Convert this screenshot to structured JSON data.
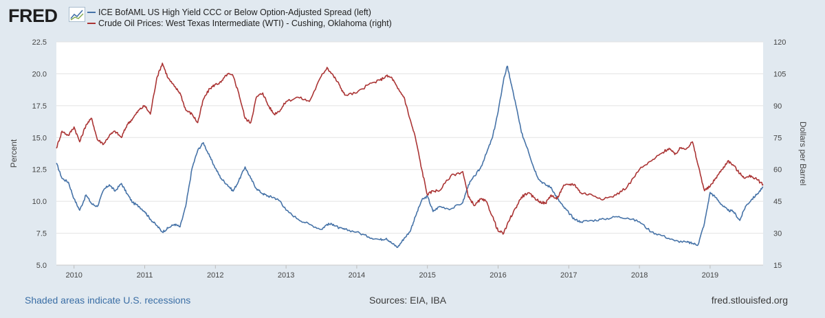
{
  "header": {
    "logo_text": "FRED",
    "logo_icon": "line-chart-icon"
  },
  "footer": {
    "recession_note": "Shaded areas indicate U.S. recessions",
    "sources": "Sources: EIA, IBA",
    "site": "fred.stlouisfed.org"
  },
  "chart_data": {
    "type": "line",
    "title": "",
    "xlabel": "",
    "ylabel_left": "Percent",
    "ylabel_right": "Dollars per Barrel",
    "xlim": [
      2009.75,
      2019.75
    ],
    "ylim_left": [
      5.0,
      22.5
    ],
    "ylim_right": [
      15,
      120
    ],
    "x_ticks": [
      2010,
      2011,
      2012,
      2013,
      2014,
      2015,
      2016,
      2017,
      2018,
      2019
    ],
    "x_tick_labels": [
      "2010",
      "2011",
      "2012",
      "2013",
      "2014",
      "2015",
      "2016",
      "2017",
      "2018",
      "2019"
    ],
    "y_ticks_left": [
      5.0,
      7.5,
      10.0,
      12.5,
      15.0,
      17.5,
      20.0,
      22.5
    ],
    "y_tick_labels_left": [
      "5.0",
      "7.5",
      "10.0",
      "12.5",
      "15.0",
      "17.5",
      "20.0",
      "22.5"
    ],
    "y_ticks_right": [
      15,
      30,
      45,
      60,
      75,
      90,
      105,
      120
    ],
    "y_tick_labels_right": [
      "15",
      "30",
      "45",
      "60",
      "75",
      "90",
      "105",
      "120"
    ],
    "grid": true,
    "legend_position": "top-left",
    "series": [
      {
        "name": "ICE BofAML US High Yield CCC or Below Option-Adjusted Spread (left)",
        "axis": "left",
        "color": "#4572a7",
        "x": [
          2009.75,
          2009.83,
          2009.92,
          2010.0,
          2010.08,
          2010.17,
          2010.25,
          2010.33,
          2010.42,
          2010.5,
          2010.58,
          2010.67,
          2010.75,
          2010.83,
          2010.92,
          2011.0,
          2011.08,
          2011.17,
          2011.25,
          2011.33,
          2011.42,
          2011.5,
          2011.58,
          2011.67,
          2011.75,
          2011.83,
          2011.92,
          2012.0,
          2012.08,
          2012.17,
          2012.25,
          2012.33,
          2012.42,
          2012.5,
          2012.58,
          2012.67,
          2012.75,
          2012.83,
          2012.92,
          2013.0,
          2013.17,
          2013.33,
          2013.5,
          2013.58,
          2013.67,
          2013.75,
          2013.83,
          2014.0,
          2014.17,
          2014.33,
          2014.42,
          2014.5,
          2014.58,
          2014.67,
          2014.75,
          2014.83,
          2014.92,
          2015.0,
          2015.08,
          2015.17,
          2015.33,
          2015.5,
          2015.58,
          2015.67,
          2015.75,
          2015.83,
          2015.92,
          2016.0,
          2016.08,
          2016.13,
          2016.17,
          2016.25,
          2016.33,
          2016.42,
          2016.5,
          2016.58,
          2016.67,
          2016.75,
          2016.83,
          2016.92,
          2017.0,
          2017.08,
          2017.17,
          2017.33,
          2017.5,
          2017.67,
          2017.83,
          2018.0,
          2018.17,
          2018.33,
          2018.5,
          2018.67,
          2018.75,
          2018.83,
          2018.92,
          2019.0,
          2019.08,
          2019.17,
          2019.25,
          2019.33,
          2019.42,
          2019.5,
          2019.58,
          2019.67,
          2019.75
        ],
        "values": [
          13.0,
          11.8,
          11.5,
          10.2,
          9.3,
          10.5,
          9.8,
          9.6,
          10.9,
          11.3,
          10.8,
          11.4,
          10.6,
          9.9,
          9.6,
          9.2,
          8.6,
          8.1,
          7.6,
          7.9,
          8.2,
          8.0,
          9.6,
          12.6,
          14.0,
          14.6,
          13.5,
          12.6,
          11.8,
          11.3,
          10.8,
          11.6,
          12.7,
          11.8,
          11.0,
          10.6,
          10.4,
          10.3,
          10.0,
          9.3,
          8.6,
          8.2,
          7.8,
          8.2,
          8.2,
          7.9,
          7.8,
          7.6,
          7.2,
          7.0,
          7.1,
          6.7,
          6.4,
          7.1,
          7.6,
          8.8,
          10.1,
          10.4,
          9.2,
          9.6,
          9.4,
          9.9,
          11.3,
          12.0,
          12.6,
          13.7,
          15.0,
          17.0,
          19.6,
          20.6,
          19.6,
          17.6,
          15.4,
          14.1,
          12.7,
          11.7,
          11.3,
          11.1,
          10.3,
          9.6,
          9.1,
          8.6,
          8.4,
          8.5,
          8.6,
          8.8,
          8.7,
          8.4,
          7.6,
          7.3,
          6.9,
          6.8,
          6.7,
          6.6,
          8.3,
          10.7,
          10.3,
          9.7,
          9.3,
          9.2,
          8.5,
          9.6,
          10.1,
          10.6,
          11.1
        ]
      },
      {
        "name": "Crude Oil Prices: West Texas Intermediate (WTI) - Cushing, Oklahoma (right)",
        "axis": "right",
        "color": "#aa3333",
        "x": [
          2009.75,
          2009.83,
          2009.92,
          2010.0,
          2010.08,
          2010.17,
          2010.25,
          2010.33,
          2010.42,
          2010.5,
          2010.58,
          2010.67,
          2010.75,
          2010.83,
          2010.92,
          2011.0,
          2011.08,
          2011.17,
          2011.25,
          2011.33,
          2011.42,
          2011.5,
          2011.58,
          2011.67,
          2011.75,
          2011.83,
          2011.92,
          2012.0,
          2012.08,
          2012.17,
          2012.25,
          2012.33,
          2012.42,
          2012.5,
          2012.58,
          2012.67,
          2012.75,
          2012.83,
          2012.92,
          2013.0,
          2013.17,
          2013.33,
          2013.5,
          2013.58,
          2013.67,
          2013.75,
          2013.83,
          2014.0,
          2014.17,
          2014.33,
          2014.42,
          2014.5,
          2014.58,
          2014.67,
          2014.75,
          2014.83,
          2014.92,
          2015.0,
          2015.08,
          2015.17,
          2015.33,
          2015.5,
          2015.58,
          2015.67,
          2015.75,
          2015.83,
          2015.92,
          2016.0,
          2016.08,
          2016.17,
          2016.25,
          2016.33,
          2016.42,
          2016.5,
          2016.58,
          2016.67,
          2016.75,
          2016.83,
          2016.92,
          2017.0,
          2017.08,
          2017.17,
          2017.33,
          2017.5,
          2017.67,
          2017.83,
          2018.0,
          2018.17,
          2018.33,
          2018.42,
          2018.5,
          2018.58,
          2018.67,
          2018.75,
          2018.83,
          2018.92,
          2019.0,
          2019.08,
          2019.17,
          2019.25,
          2019.33,
          2019.42,
          2019.5,
          2019.58,
          2019.67,
          2019.75
        ],
        "values": [
          70,
          78,
          76,
          80,
          73,
          81,
          84,
          74,
          72,
          76,
          78,
          75,
          81,
          84,
          88,
          90,
          86,
          103,
          110,
          103,
          99,
          96,
          88,
          86,
          82,
          93,
          98,
          100,
          101,
          105,
          104,
          96,
          84,
          82,
          94,
          96,
          90,
          86,
          88,
          92,
          94,
          92,
          104,
          108,
          104,
          100,
          95,
          96,
          100,
          102,
          104,
          103,
          98,
          94,
          84,
          75,
          60,
          48,
          50,
          50,
          57,
          59,
          47,
          43,
          46,
          45,
          38,
          31,
          30,
          37,
          42,
          47,
          49,
          47,
          45,
          44,
          48,
          46,
          52,
          53,
          53,
          49,
          48,
          46,
          48,
          52,
          60,
          64,
          68,
          70,
          67,
          70,
          70,
          73,
          62,
          50,
          52,
          56,
          60,
          64,
          62,
          58,
          56,
          57,
          55,
          53
        ]
      }
    ]
  }
}
